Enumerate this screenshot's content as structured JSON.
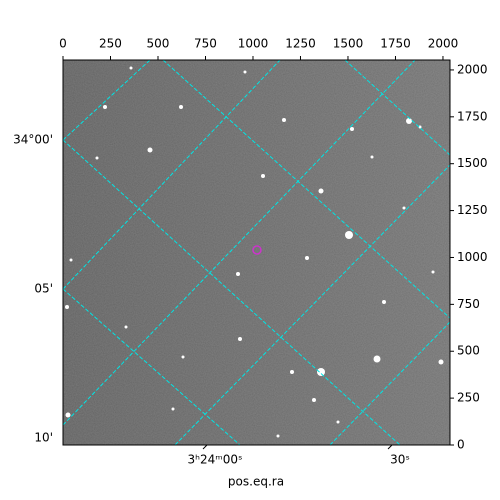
{
  "chart_data": {
    "type": "image",
    "xlim": [
      0,
      2037
    ],
    "xticks": [
      0,
      250,
      500,
      750,
      1000,
      1250,
      1500,
      1750,
      2000
    ],
    "ylim": [
      0,
      2053
    ],
    "yticks": [
      0,
      250,
      500,
      750,
      1000,
      1250,
      1500,
      1750,
      2000
    ],
    "ra_ticks": [
      "3ʰ24ᵐ00ˢ",
      "30ˢ"
    ],
    "dec_ticks": [
      "34°00'",
      "05'",
      "10'"
    ],
    "xlabel": "pos.eq.ra",
    "marker": {
      "x": 1021,
      "y": 1040,
      "color": "#cc33cc"
    },
    "grid": true
  }
}
